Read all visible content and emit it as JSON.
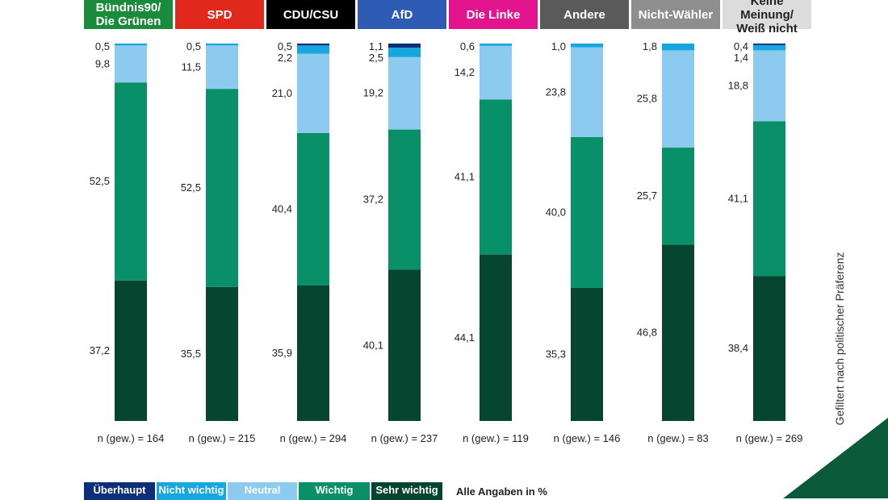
{
  "chart_data": {
    "type": "bar",
    "stacked": true,
    "orientation": "vertical",
    "ylim": [
      0,
      100
    ],
    "categories": [
      "Bündnis90/\nDie Grünen",
      "SPD",
      "CDU/CSU",
      "AfD",
      "Die Linke",
      "Andere",
      "Nicht-Wähler",
      "Keine Meinung/\nWeiß nicht"
    ],
    "category_colors": [
      "#1a8a3b",
      "#e1281c",
      "#000000",
      "#2e5bb4",
      "#e2158e",
      "#5a5a5a",
      "#8e8e8e",
      "#dcdcdc"
    ],
    "series": [
      {
        "name": "Sehr wichtig",
        "color": "#064530",
        "values": [
          37.2,
          35.5,
          35.9,
          40.1,
          44.1,
          35.3,
          46.8,
          38.4
        ],
        "labels": [
          "37,2",
          "35,5",
          "35,9",
          "40,1",
          "44,1",
          "35,3",
          "46,8",
          "38,4"
        ]
      },
      {
        "name": "Wichtig",
        "color": "#0a9068",
        "values": [
          52.5,
          52.5,
          40.4,
          37.2,
          41.1,
          40.0,
          25.7,
          41.1
        ],
        "labels": [
          "52,5",
          "52,5",
          "40,4",
          "37,2",
          "41,1",
          "40,0",
          "25,7",
          "41,1"
        ]
      },
      {
        "name": "Neutral",
        "color": "#8ccbef",
        "values": [
          9.8,
          11.5,
          21.0,
          19.2,
          14.2,
          23.8,
          25.8,
          18.8
        ],
        "labels": [
          "9,8",
          "11,5",
          "21,0",
          "19,2",
          "14,2",
          "23,8",
          "25,8",
          "18,8"
        ]
      },
      {
        "name": "Nicht wichtig",
        "color": "#16a7e0",
        "values": [
          0.5,
          0.5,
          2.2,
          2.5,
          0.6,
          1.0,
          1.8,
          1.4
        ],
        "labels": [
          "0,5",
          "0,5",
          "2,2",
          "2,5",
          "0,6",
          "1,0",
          "1,8",
          "1,4"
        ]
      },
      {
        "name": "Überhaupt nicht wichtig",
        "color": "#0d2f7a",
        "values": [
          0,
          0,
          0.5,
          1.1,
          0,
          0,
          0,
          0.4
        ],
        "labels": [
          "",
          "",
          "0,5",
          "1,1",
          "",
          "",
          "",
          "0,4"
        ]
      }
    ],
    "n_labels": [
      "n (gew.) = 164",
      "n (gew.) = 215",
      "n (gew.) = 294",
      "n (gew.) = 237",
      "n (gew.) = 119",
      "n (gew.) = 146",
      "n (gew.) = 83",
      "n (gew.) = 269"
    ],
    "legend": [
      {
        "label": "Überhaupt",
        "color": "#0d2f7a"
      },
      {
        "label": "Nicht wichtig",
        "color": "#16a7e0"
      },
      {
        "label": "Neutral",
        "color": "#8ccbef"
      },
      {
        "label": "Wichtig",
        "color": "#0a9068"
      },
      {
        "label": "Sehr wichtig",
        "color": "#064530"
      }
    ],
    "note": "Alle Angaben in %",
    "side_label": "Gefiltert nach politischer Präferenz"
  }
}
